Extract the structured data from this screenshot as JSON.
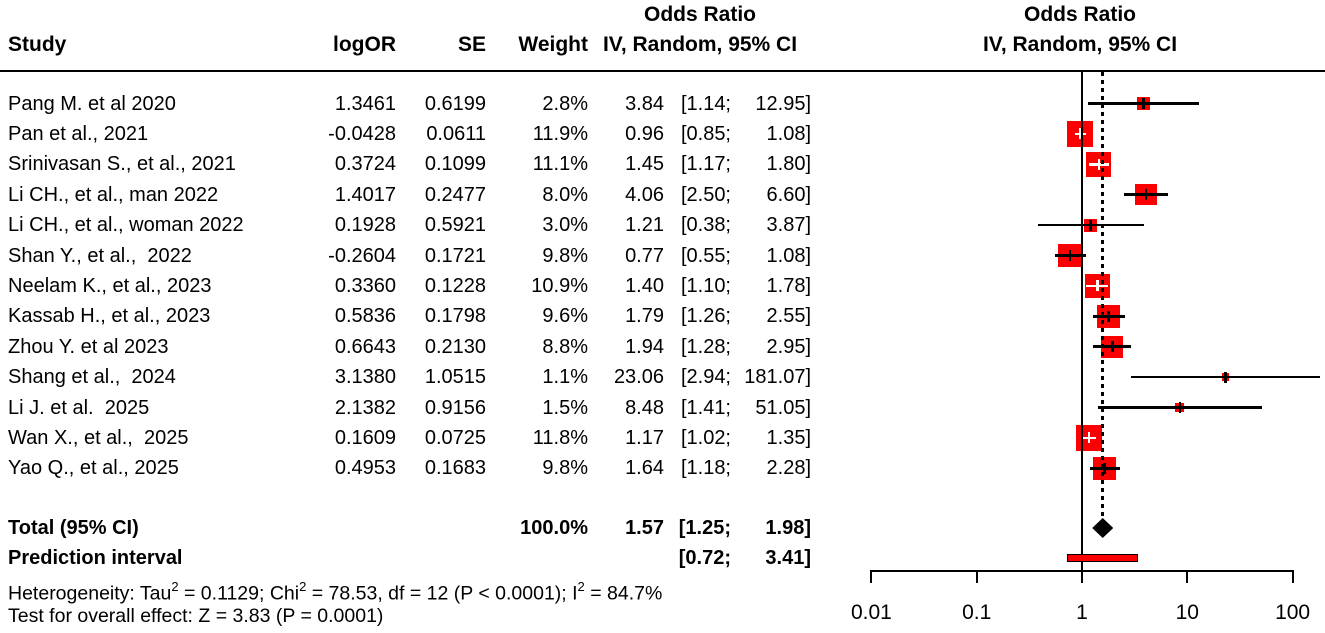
{
  "headers": {
    "odds_ratio_left": "Odds Ratio",
    "effect_left": "IV, Random, 95% CI",
    "odds_ratio_right": "Odds Ratio",
    "effect_right": "IV, Random, 95% CI",
    "study": "Study",
    "logor": "logOR",
    "se": "SE",
    "weight": "Weight"
  },
  "colors": {
    "square_fill": "#fa0000",
    "prediction_fill": "#fa0000",
    "ci_line": "#000000",
    "inside_marker": "#ffffff",
    "diamond_fill": "#000000"
  },
  "chart_data": {
    "type": "forest",
    "effect_measure": "Odds Ratio",
    "model": "IV, Random, 95% CI",
    "x_axis": {
      "scale": "log10",
      "ticks": [
        0.01,
        0.1,
        1,
        10,
        100
      ],
      "tick_labels": [
        "0.01",
        "0.1",
        "1",
        "10",
        "100"
      ]
    },
    "null_value": 1,
    "studies": [
      {
        "name": "Pang M. et al 2020",
        "logOR": "1.3461",
        "se": "0.6199",
        "weight_label": "2.8%",
        "weight": 2.8,
        "or": 3.84,
        "lo": 1.14,
        "hi": 12.95,
        "or_label": "3.84",
        "lo_label": "[1.14;",
        "hi_label": "12.95]"
      },
      {
        "name": "Pan et al., 2021",
        "logOR": "-0.0428",
        "se": "0.0611",
        "weight_label": "11.9%",
        "weight": 11.9,
        "or": 0.96,
        "lo": 0.85,
        "hi": 1.08,
        "or_label": "0.96",
        "lo_label": "[0.85;",
        "hi_label": "1.08]"
      },
      {
        "name": "Srinivasan S., et al., 2021",
        "logOR": "0.3724",
        "se": "0.1099",
        "weight_label": "11.1%",
        "weight": 11.1,
        "or": 1.45,
        "lo": 1.17,
        "hi": 1.8,
        "or_label": "1.45",
        "lo_label": "[1.17;",
        "hi_label": "1.80]"
      },
      {
        "name": "Li CH., et al., man 2022",
        "logOR": "1.4017",
        "se": "0.2477",
        "weight_label": "8.0%",
        "weight": 8.0,
        "or": 4.06,
        "lo": 2.5,
        "hi": 6.6,
        "or_label": "4.06",
        "lo_label": "[2.50;",
        "hi_label": "6.60]"
      },
      {
        "name": "Li CH., et al., woman 2022",
        "logOR": "0.1928",
        "se": "0.5921",
        "weight_label": "3.0%",
        "weight": 3.0,
        "or": 1.21,
        "lo": 0.38,
        "hi": 3.87,
        "or_label": "1.21",
        "lo_label": "[0.38;",
        "hi_label": "3.87]"
      },
      {
        "name": "Shan Y., et al.,  2022",
        "logOR": "-0.2604",
        "se": "0.1721",
        "weight_label": "9.8%",
        "weight": 9.8,
        "or": 0.77,
        "lo": 0.55,
        "hi": 1.08,
        "or_label": "0.77",
        "lo_label": "[0.55;",
        "hi_label": "1.08]"
      },
      {
        "name": "Neelam K., et al., 2023",
        "logOR": "0.3360",
        "se": "0.1228",
        "weight_label": "10.9%",
        "weight": 10.9,
        "or": 1.4,
        "lo": 1.1,
        "hi": 1.78,
        "or_label": "1.40",
        "lo_label": "[1.10;",
        "hi_label": "1.78]"
      },
      {
        "name": "Kassab H., et al., 2023",
        "logOR": "0.5836",
        "se": "0.1798",
        "weight_label": "9.6%",
        "weight": 9.6,
        "or": 1.79,
        "lo": 1.26,
        "hi": 2.55,
        "or_label": "1.79",
        "lo_label": "[1.26;",
        "hi_label": "2.55]"
      },
      {
        "name": "Zhou Y. et al 2023",
        "logOR": "0.6643",
        "se": "0.2130",
        "weight_label": "8.8%",
        "weight": 8.8,
        "or": 1.94,
        "lo": 1.28,
        "hi": 2.95,
        "or_label": "1.94",
        "lo_label": "[1.28;",
        "hi_label": "2.95]"
      },
      {
        "name": "Shang et al.,  2024",
        "logOR": "3.1380",
        "se": "1.0515",
        "weight_label": "1.1%",
        "weight": 1.1,
        "or": 23.06,
        "lo": 2.94,
        "hi": 181.07,
        "or_label": "23.06",
        "lo_label": "[2.94;",
        "hi_label": "181.07]"
      },
      {
        "name": "Li J. et al.  2025",
        "logOR": "2.1382",
        "se": "0.9156",
        "weight_label": "1.5%",
        "weight": 1.5,
        "or": 8.48,
        "lo": 1.41,
        "hi": 51.05,
        "or_label": "8.48",
        "lo_label": "[1.41;",
        "hi_label": "51.05]"
      },
      {
        "name": "Wan X., et al.,  2025",
        "logOR": "0.1609",
        "se": "0.0725",
        "weight_label": "11.8%",
        "weight": 11.8,
        "or": 1.17,
        "lo": 1.02,
        "hi": 1.35,
        "or_label": "1.17",
        "lo_label": "[1.02;",
        "hi_label": "1.35]"
      },
      {
        "name": "Yao Q., et al., 2025",
        "logOR": "0.4953",
        "se": "0.1683",
        "weight_label": "9.8%",
        "weight": 9.8,
        "or": 1.64,
        "lo": 1.18,
        "hi": 2.28,
        "or_label": "1.64",
        "lo_label": "[1.18;",
        "hi_label": "2.28]"
      }
    ],
    "total": {
      "label": "Total (95% CI)",
      "weight_label": "100.0%",
      "or": 1.57,
      "lo": 1.25,
      "hi": 1.98,
      "or_label": "1.57",
      "lo_label": "[1.25;",
      "hi_label": "1.98]"
    },
    "prediction": {
      "label": "Prediction interval",
      "lo": 0.72,
      "hi": 3.41,
      "lo_label": "[0.72;",
      "hi_label": "3.41]"
    }
  },
  "footnotes": {
    "heterogeneity_segments": [
      {
        "t": "Heterogeneity: Tau"
      },
      {
        "t": "2",
        "sup": true
      },
      {
        "t": " = 0.1129; Chi"
      },
      {
        "t": "2",
        "sup": true
      },
      {
        "t": " = 78.53, df = 12 (P < 0.0001); I"
      },
      {
        "t": "2",
        "sup": true
      },
      {
        "t": " = 84.7%"
      }
    ],
    "overall_effect": "Test for overall effect: Z = 3.83 (P = 0.0001)"
  }
}
